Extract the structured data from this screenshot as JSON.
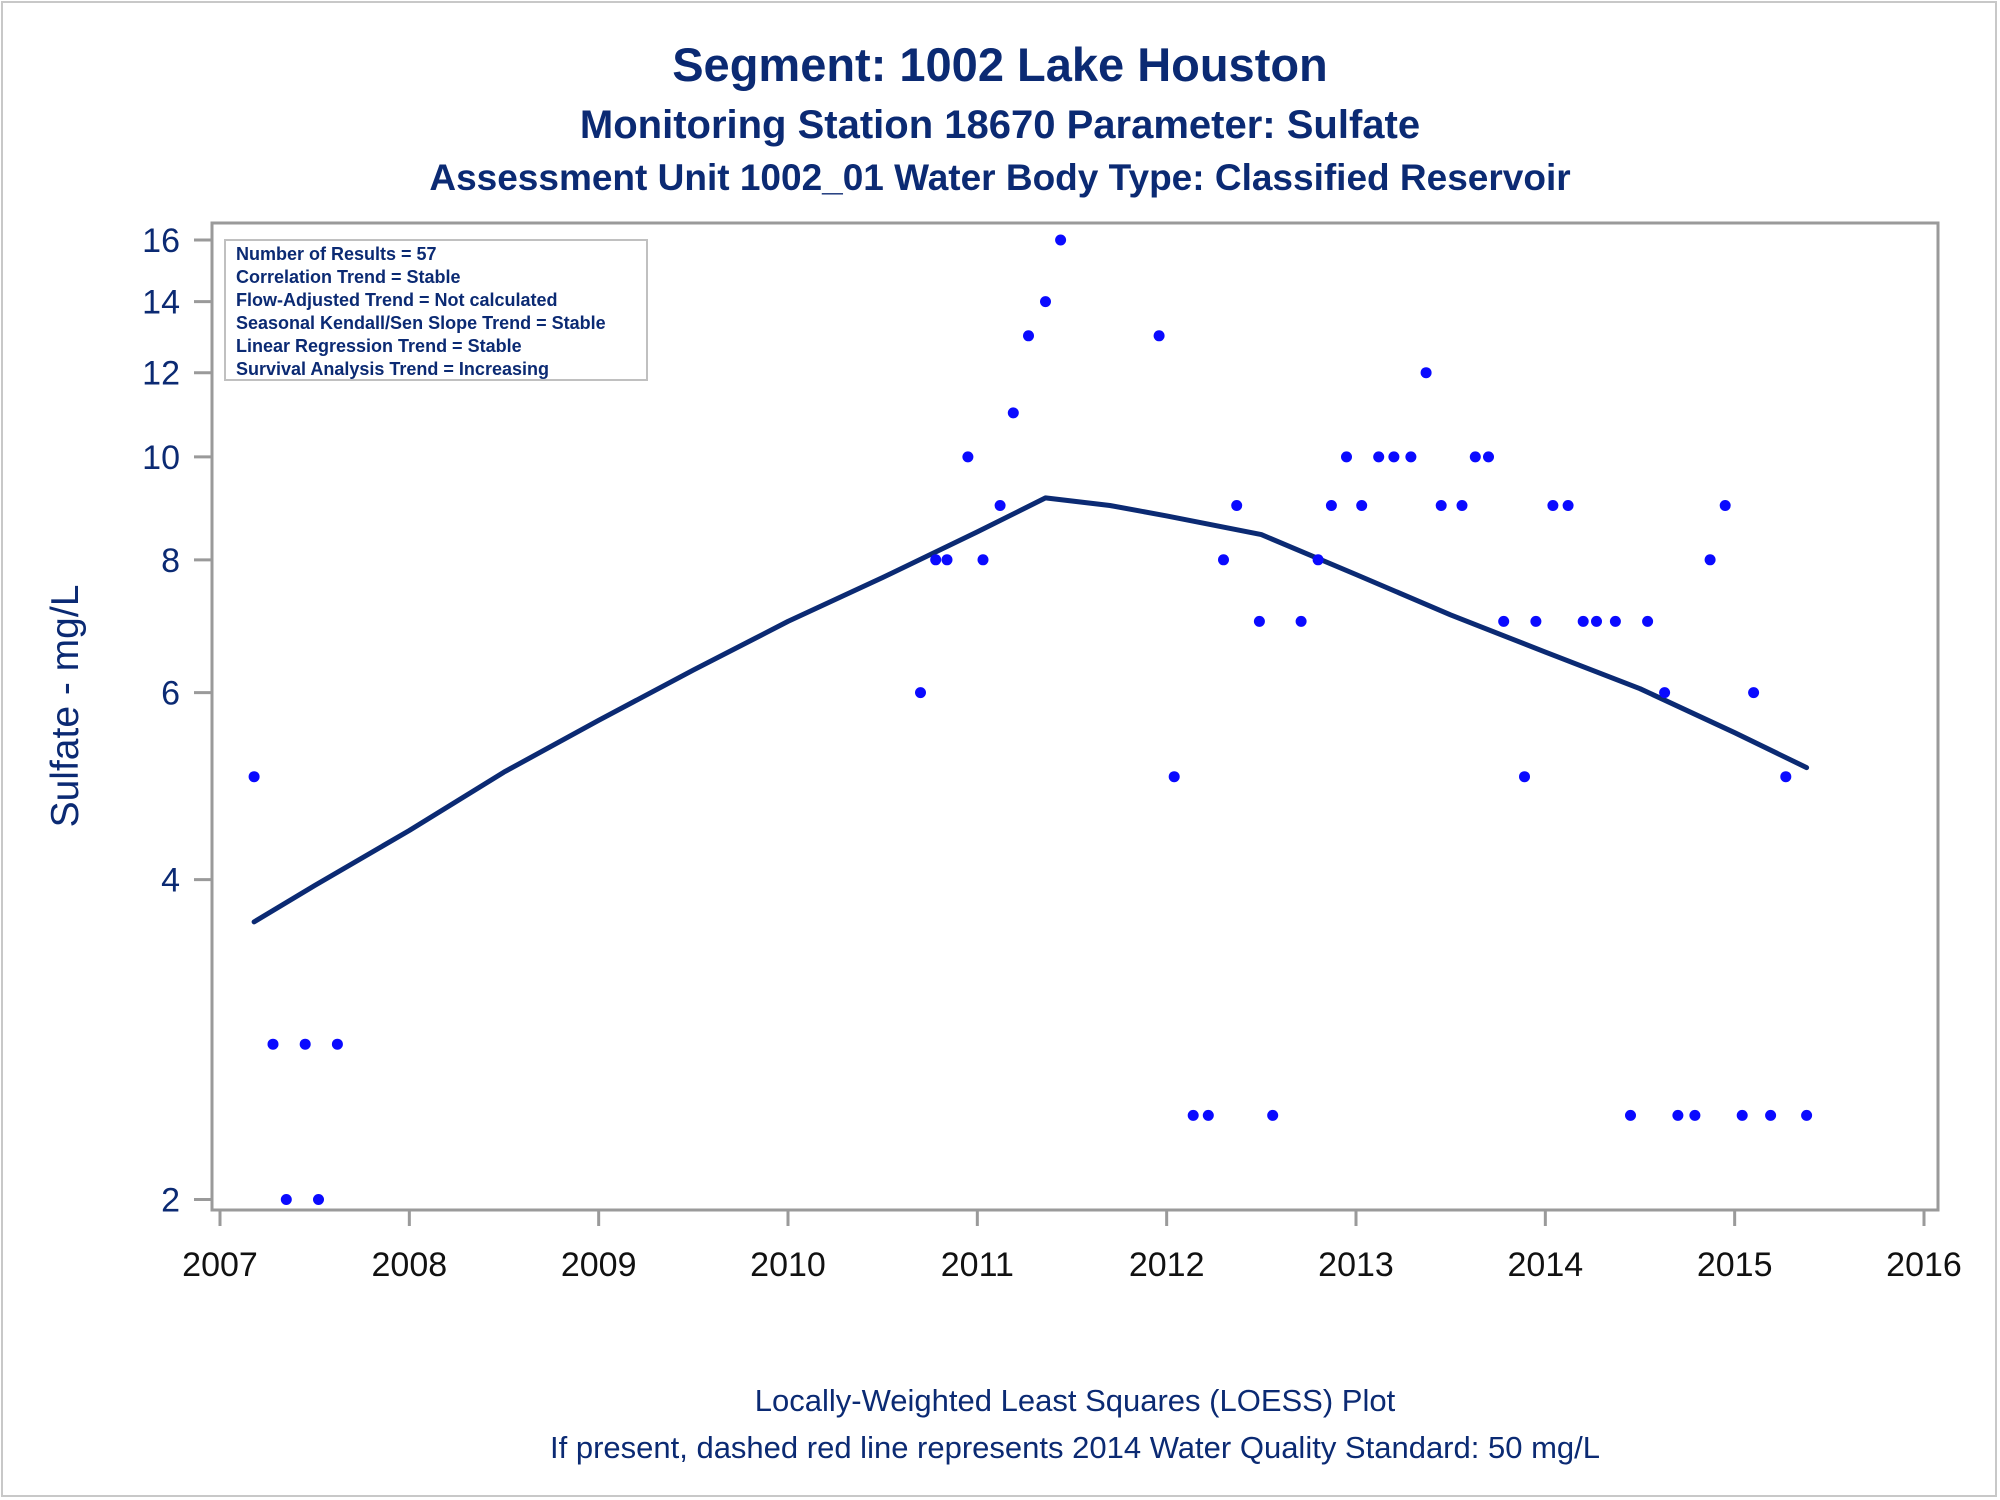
{
  "titles": {
    "line1": "Segment: 1002  Lake Houston",
    "line2": "Monitoring Station 18670 Parameter: Sulfate",
    "line3": "Assessment Unit 1002_01   Water Body Type: Classified Reservoir"
  },
  "inset": [
    "Number of Results = 57",
    "Correlation Trend = Stable",
    "Flow-Adjusted Trend = Not calculated",
    "Seasonal Kendall/Sen Slope Trend = Stable",
    "Linear Regression Trend = Stable",
    "Survival Analysis Trend = Increasing"
  ],
  "footer": {
    "line1": "Locally-Weighted Least Squares (LOESS) Plot",
    "line2": "If present, dashed red line represents 2014 Water Quality Standard: 50    mg/L"
  },
  "colors": {
    "points": "#0a0aff",
    "loess": "#0b2a73",
    "text": "#0b2a73",
    "axis": "#9a9a9a"
  },
  "chart_data": {
    "type": "scatter",
    "ylabel": "Sulfate - mg/L",
    "xlabel": "",
    "xlim": [
      2007,
      2016
    ],
    "ylim": [
      2,
      16
    ],
    "yscale": "log",
    "xticks": [
      2007,
      2008,
      2009,
      2010,
      2011,
      2012,
      2013,
      2014,
      2015,
      2016
    ],
    "yticks": [
      2,
      4,
      6,
      8,
      10,
      12,
      14,
      16
    ],
    "grid": false,
    "series": [
      {
        "type": "scatter",
        "points": [
          [
            2007.18,
            5
          ],
          [
            2007.28,
            2.8
          ],
          [
            2007.35,
            2
          ],
          [
            2007.45,
            2.8
          ],
          [
            2007.52,
            2
          ],
          [
            2007.62,
            2.8
          ],
          [
            2010.7,
            6
          ],
          [
            2010.78,
            8
          ],
          [
            2010.84,
            8
          ],
          [
            2010.95,
            10
          ],
          [
            2011.03,
            8
          ],
          [
            2011.12,
            9
          ],
          [
            2011.19,
            11
          ],
          [
            2011.27,
            13
          ],
          [
            2011.36,
            14
          ],
          [
            2011.44,
            16
          ],
          [
            2011.96,
            13
          ],
          [
            2012.04,
            5
          ],
          [
            2012.14,
            2.4
          ],
          [
            2012.22,
            2.4
          ],
          [
            2012.3,
            8
          ],
          [
            2012.37,
            9
          ],
          [
            2012.49,
            7
          ],
          [
            2012.56,
            2.4
          ],
          [
            2012.71,
            7
          ],
          [
            2012.8,
            8
          ],
          [
            2012.87,
            9
          ],
          [
            2012.95,
            10
          ],
          [
            2013.03,
            9
          ],
          [
            2013.12,
            10
          ],
          [
            2013.2,
            10
          ],
          [
            2013.29,
            10
          ],
          [
            2013.37,
            12
          ],
          [
            2013.45,
            9
          ],
          [
            2013.56,
            9
          ],
          [
            2013.63,
            10
          ],
          [
            2013.7,
            10
          ],
          [
            2013.78,
            7
          ],
          [
            2013.89,
            5
          ],
          [
            2013.95,
            7
          ],
          [
            2014.04,
            9
          ],
          [
            2014.12,
            9
          ],
          [
            2014.2,
            7
          ],
          [
            2014.27,
            7
          ],
          [
            2014.37,
            7
          ],
          [
            2014.45,
            2.4
          ],
          [
            2014.54,
            7
          ],
          [
            2014.63,
            6
          ],
          [
            2014.7,
            2.4
          ],
          [
            2014.79,
            2.4
          ],
          [
            2014.87,
            8
          ],
          [
            2014.95,
            9
          ],
          [
            2015.04,
            2.4
          ],
          [
            2015.1,
            6
          ],
          [
            2015.19,
            2.4
          ],
          [
            2015.27,
            5
          ],
          [
            2015.38,
            2.4
          ]
        ]
      },
      {
        "type": "line",
        "points": [
          [
            2007.18,
            3.65
          ],
          [
            2007.5,
            3.95
          ],
          [
            2008.0,
            4.45
          ],
          [
            2008.5,
            5.05
          ],
          [
            2009.0,
            5.65
          ],
          [
            2009.5,
            6.3
          ],
          [
            2010.0,
            7.0
          ],
          [
            2010.5,
            7.7
          ],
          [
            2011.0,
            8.5
          ],
          [
            2011.36,
            9.15
          ],
          [
            2011.7,
            9.0
          ],
          [
            2012.0,
            8.8
          ],
          [
            2012.5,
            8.45
          ],
          [
            2013.0,
            7.75
          ],
          [
            2013.5,
            7.1
          ],
          [
            2014.0,
            6.55
          ],
          [
            2014.5,
            6.05
          ],
          [
            2015.0,
            5.5
          ],
          [
            2015.38,
            5.1
          ]
        ]
      }
    ]
  }
}
